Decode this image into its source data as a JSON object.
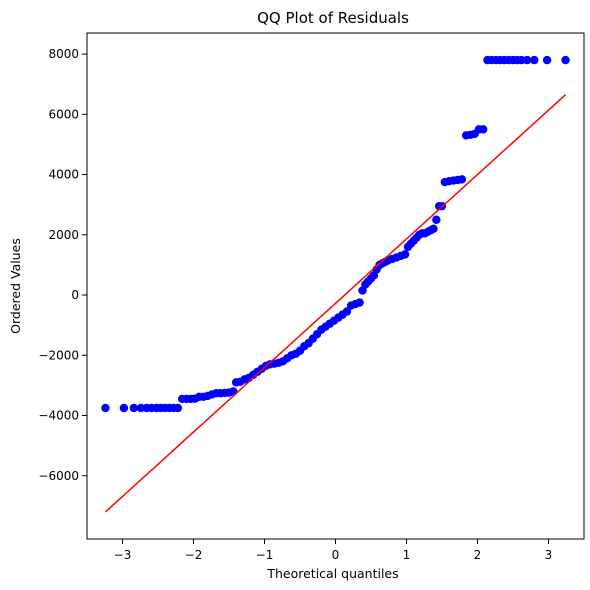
{
  "chart_data": {
    "type": "scatter",
    "title": "QQ Plot of Residuals",
    "xlabel": "Theoretical quantiles",
    "ylabel": "Ordered Values",
    "xlim": [
      -3.5,
      3.5
    ],
    "ylim": [
      -8100,
      8700
    ],
    "x_ticks": [
      -3,
      -2,
      -1,
      0,
      1,
      2,
      3
    ],
    "x_tick_labels": [
      "−3",
      "−2",
      "−1",
      "0",
      "1",
      "2",
      "3"
    ],
    "y_ticks": [
      -6000,
      -4000,
      -2000,
      0,
      2000,
      4000,
      6000,
      8000
    ],
    "y_tick_labels": [
      "−6000",
      "−4000",
      "−2000",
      "0",
      "2000",
      "4000",
      "6000",
      "8000"
    ],
    "grid": false,
    "series": [
      {
        "kind": "points",
        "color": "#0000ff",
        "points": [
          [
            -3.24,
            -3750
          ],
          [
            -2.98,
            -3750
          ],
          [
            -2.84,
            -3750
          ],
          [
            -2.74,
            -3750
          ],
          [
            -2.66,
            -3750
          ],
          [
            -2.59,
            -3750
          ],
          [
            -2.52,
            -3750
          ],
          [
            -2.46,
            -3750
          ],
          [
            -2.4,
            -3750
          ],
          [
            -2.34,
            -3750
          ],
          [
            -2.28,
            -3750
          ],
          [
            -2.22,
            -3750
          ],
          [
            -2.16,
            -3450
          ],
          [
            -2.1,
            -3450
          ],
          [
            -2.04,
            -3450
          ],
          [
            -1.98,
            -3440
          ],
          [
            -1.92,
            -3380
          ],
          [
            -1.86,
            -3380
          ],
          [
            -1.8,
            -3350
          ],
          [
            -1.74,
            -3300
          ],
          [
            -1.68,
            -3260
          ],
          [
            -1.62,
            -3260
          ],
          [
            -1.56,
            -3250
          ],
          [
            -1.5,
            -3240
          ],
          [
            -1.44,
            -3200
          ],
          [
            -1.4,
            -2900
          ],
          [
            -1.34,
            -2880
          ],
          [
            -1.28,
            -2800
          ],
          [
            -1.22,
            -2750
          ],
          [
            -1.16,
            -2650
          ],
          [
            -1.1,
            -2550
          ],
          [
            -1.04,
            -2450
          ],
          [
            -0.98,
            -2350
          ],
          [
            -0.92,
            -2300
          ],
          [
            -0.86,
            -2280
          ],
          [
            -0.8,
            -2250
          ],
          [
            -0.74,
            -2200
          ],
          [
            -0.68,
            -2100
          ],
          [
            -0.62,
            -2000
          ],
          [
            -0.56,
            -1950
          ],
          [
            -0.5,
            -1850
          ],
          [
            -0.44,
            -1700
          ],
          [
            -0.38,
            -1600
          ],
          [
            -0.32,
            -1450
          ],
          [
            -0.26,
            -1300
          ],
          [
            -0.2,
            -1150
          ],
          [
            -0.14,
            -1050
          ],
          [
            -0.08,
            -950
          ],
          [
            -0.02,
            -850
          ],
          [
            0.04,
            -750
          ],
          [
            0.1,
            -650
          ],
          [
            0.16,
            -550
          ],
          [
            0.22,
            -350
          ],
          [
            0.28,
            -300
          ],
          [
            0.34,
            -250
          ],
          [
            0.38,
            150
          ],
          [
            0.42,
            350
          ],
          [
            0.46,
            450
          ],
          [
            0.5,
            550
          ],
          [
            0.54,
            650
          ],
          [
            0.58,
            850
          ],
          [
            0.62,
            1000
          ],
          [
            0.66,
            1050
          ],
          [
            0.7,
            1100
          ],
          [
            0.74,
            1150
          ],
          [
            0.8,
            1200
          ],
          [
            0.86,
            1250
          ],
          [
            0.92,
            1300
          ],
          [
            0.98,
            1350
          ],
          [
            1.02,
            1600
          ],
          [
            1.06,
            1700
          ],
          [
            1.1,
            1800
          ],
          [
            1.14,
            1900
          ],
          [
            1.18,
            2000
          ],
          [
            1.22,
            2050
          ],
          [
            1.26,
            2050
          ],
          [
            1.3,
            2100
          ],
          [
            1.34,
            2150
          ],
          [
            1.38,
            2200
          ],
          [
            1.42,
            2500
          ],
          [
            1.46,
            2950
          ],
          [
            1.5,
            2950
          ],
          [
            1.54,
            3750
          ],
          [
            1.6,
            3780
          ],
          [
            1.66,
            3800
          ],
          [
            1.72,
            3820
          ],
          [
            1.78,
            3840
          ],
          [
            1.84,
            5300
          ],
          [
            1.9,
            5320
          ],
          [
            1.96,
            5350
          ],
          [
            2.02,
            5500
          ],
          [
            2.08,
            5500
          ],
          [
            2.14,
            7800
          ],
          [
            2.2,
            7800
          ],
          [
            2.26,
            7800
          ],
          [
            2.32,
            7800
          ],
          [
            2.38,
            7800
          ],
          [
            2.44,
            7800
          ],
          [
            2.5,
            7800
          ],
          [
            2.56,
            7800
          ],
          [
            2.62,
            7800
          ],
          [
            2.7,
            7800
          ],
          [
            2.8,
            7800
          ],
          [
            2.98,
            7800
          ],
          [
            3.24,
            7800
          ]
        ]
      },
      {
        "kind": "line",
        "color": "#ff0000",
        "points": [
          [
            -3.24,
            -7200
          ],
          [
            3.24,
            6650
          ]
        ]
      }
    ]
  }
}
